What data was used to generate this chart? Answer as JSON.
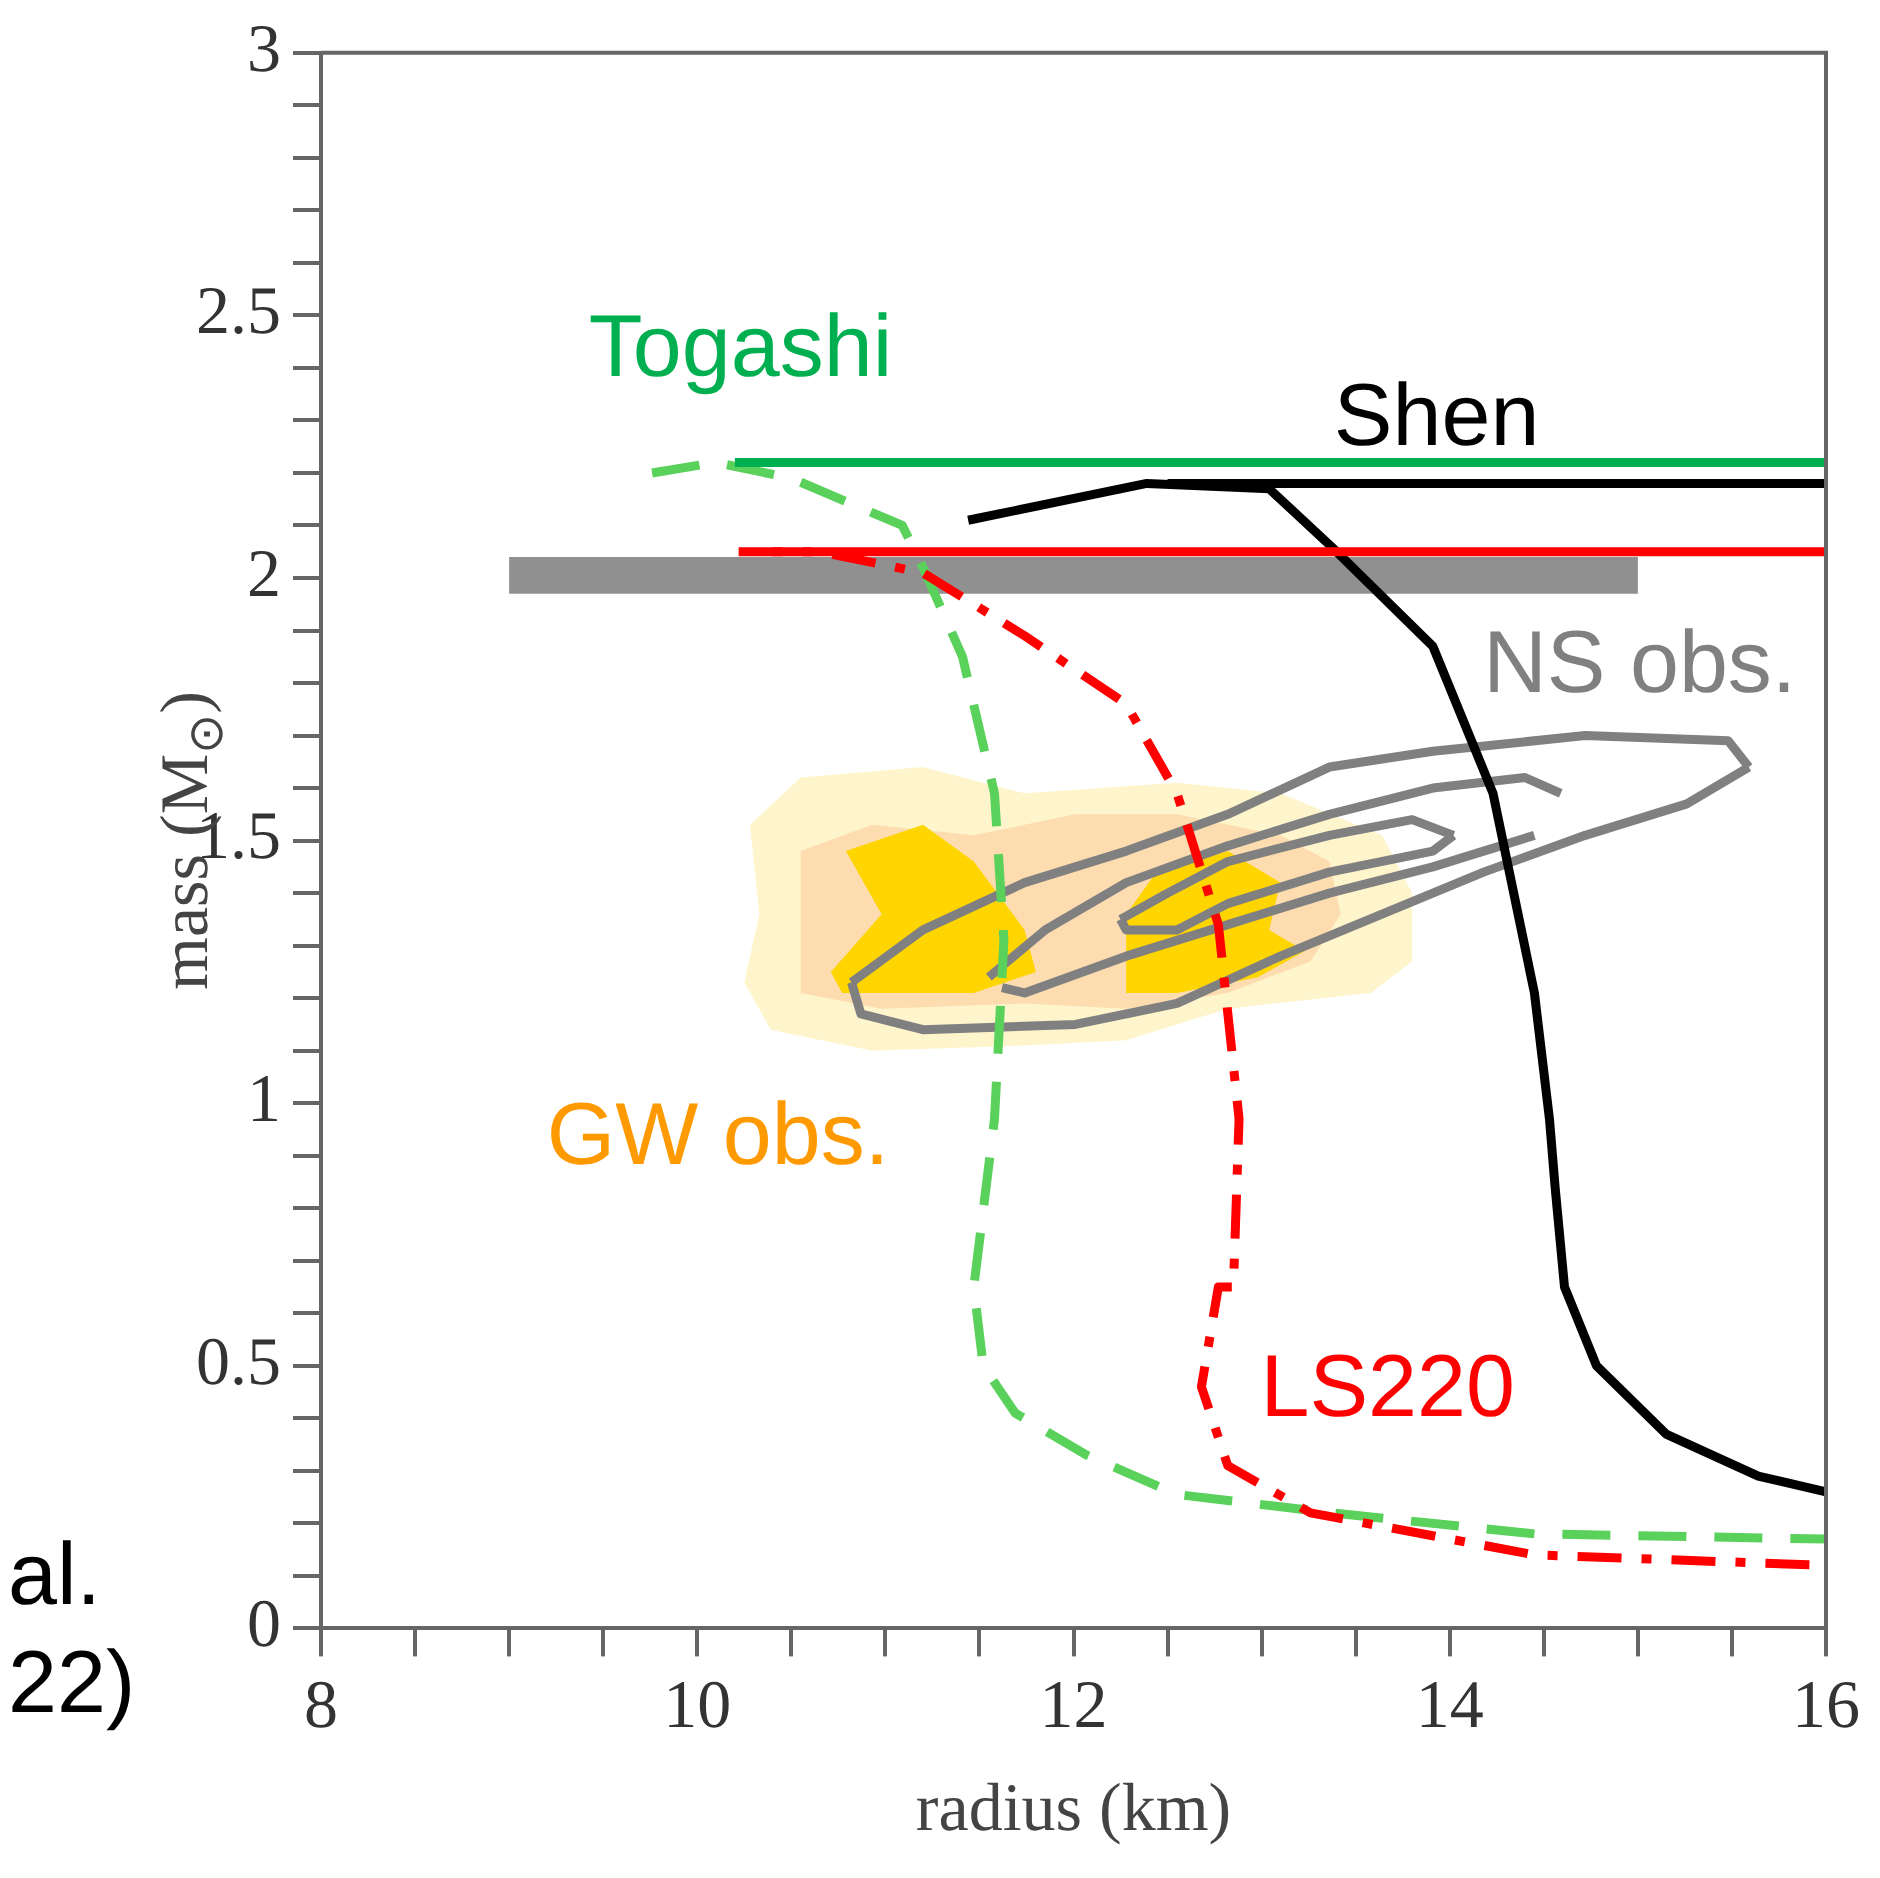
{
  "chart_data": {
    "type": "line",
    "xlabel": "radius (km)",
    "ylabel": "mass (M$_{⊙}$)",
    "xlim": [
      8,
      16
    ],
    "ylim": [
      0,
      3
    ],
    "xticks": [
      8,
      {
        "value": 8.5,
        "label": null
      },
      {
        "value": 9,
        "label": null
      },
      {
        "value": 9.5,
        "label": null
      },
      10,
      {
        "value": 10.5,
        "label": null
      },
      {
        "value": 11,
        "label": null
      },
      {
        "value": 11.5,
        "label": null
      },
      12,
      {
        "value": 12.5,
        "label": null
      },
      {
        "value": 13,
        "label": null
      },
      {
        "value": 13.5,
        "label": null
      },
      14,
      {
        "value": 14.5,
        "label": null
      },
      {
        "value": 15,
        "label": null
      },
      {
        "value": 15.5,
        "label": null
      },
      16
    ],
    "yticks": [
      0,
      {
        "value": 0.1,
        "label": null
      },
      {
        "value": 0.2,
        "label": null
      },
      {
        "value": 0.3,
        "label": null
      },
      {
        "value": 0.4,
        "label": null
      },
      0.5,
      {
        "value": 0.6,
        "label": null
      },
      {
        "value": 0.7,
        "label": null
      },
      {
        "value": 0.8,
        "label": null
      },
      {
        "value": 0.9,
        "label": null
      },
      1,
      {
        "value": 1.1,
        "label": null
      },
      {
        "value": 1.2,
        "label": null
      },
      {
        "value": 1.3,
        "label": null
      },
      {
        "value": 1.4,
        "label": null
      },
      1.5,
      {
        "value": 1.6,
        "label": null
      },
      {
        "value": 1.7,
        "label": null
      },
      {
        "value": 1.8,
        "label": null
      },
      {
        "value": 1.9,
        "label": null
      },
      2,
      {
        "value": 2.1,
        "label": null
      },
      {
        "value": 2.2,
        "label": null
      },
      {
        "value": 2.3,
        "label": null
      },
      {
        "value": 2.4,
        "label": null
      },
      2.5,
      {
        "value": 2.6,
        "label": null
      },
      {
        "value": 2.7,
        "label": null
      },
      {
        "value": 2.8,
        "label": null
      },
      {
        "value": 2.9,
        "label": null
      },
      3
    ],
    "grid": false,
    "marker": "none",
    "series": [
      {
        "type": "area",
        "color": "#fff5cc",
        "x": [
          10.28,
          10.55,
          11.2,
          11.74,
          12.55,
          13.1,
          13.64,
          13.8,
          13.8,
          13.58,
          12.82,
          12.28,
          11.74,
          10.93,
          10.39,
          10.25,
          10.33,
          10.28
        ],
        "values": [
          1.53,
          1.62,
          1.64,
          1.59,
          1.61,
          1.59,
          1.51,
          1.4,
          1.27,
          1.21,
          1.18,
          1.12,
          1.11,
          1.1,
          1.14,
          1.23,
          1.36,
          1.53
        ]
      },
      {
        "type": "area",
        "color": "#fddcb0",
        "x": [
          10.55,
          10.93,
          11.47,
          12.01,
          12.55,
          13.1,
          13.36,
          13.42,
          13.26,
          12.82,
          12.28,
          11.74,
          10.98,
          10.55,
          10.55
        ],
        "values": [
          1.48,
          1.53,
          1.51,
          1.55,
          1.55,
          1.51,
          1.46,
          1.36,
          1.27,
          1.21,
          1.18,
          1.19,
          1.18,
          1.21,
          1.48
        ]
      },
      {
        "type": "area",
        "color": "#ffd500",
        "x": [
          10.79,
          11.2,
          11.47,
          11.74,
          11.8,
          11.47,
          10.77,
          10.71,
          10.98,
          10.79
        ],
        "values": [
          1.48,
          1.53,
          1.46,
          1.33,
          1.25,
          1.21,
          1.21,
          1.25,
          1.36,
          1.48
        ]
      },
      {
        "type": "area",
        "color": "#ffd500",
        "x": [
          12.44,
          12.82,
          13.1,
          13.04,
          13.23,
          12.98,
          12.55,
          12.28,
          12.28,
          12.44
        ],
        "values": [
          1.44,
          1.48,
          1.42,
          1.33,
          1.29,
          1.24,
          1.21,
          1.21,
          1.36,
          1.44
        ]
      },
      {
        "type": "line",
        "color": "#808080",
        "line_style": "solid",
        "x": [
          10.82,
          11.2,
          11.74,
          12.28,
          12.82,
          13.36,
          13.91,
          14.72,
          15.48,
          15.59
        ],
        "values": [
          1.23,
          1.33,
          1.42,
          1.48,
          1.55,
          1.64,
          1.67,
          1.7,
          1.69,
          1.64
        ]
      },
      {
        "type": "line",
        "color": "#808080",
        "line_style": "solid",
        "x": [
          10.82,
          10.87,
          11.2,
          12.01,
          12.55,
          13.1,
          13.64,
          14.18,
          14.72,
          15.26,
          15.59
        ],
        "values": [
          1.23,
          1.17,
          1.14,
          1.15,
          1.19,
          1.28,
          1.36,
          1.44,
          1.51,
          1.57,
          1.64
        ]
      },
      {
        "type": "line",
        "color": "#808080",
        "line_style": "solid",
        "x": [
          11.55,
          11.85,
          12.28,
          12.82,
          13.36,
          13.91,
          14.4,
          14.59
        ],
        "values": [
          1.24,
          1.33,
          1.42,
          1.49,
          1.55,
          1.6,
          1.62,
          1.59
        ]
      },
      {
        "type": "line",
        "color": "#808080",
        "line_style": "solid",
        "x": [
          11.62,
          11.74,
          12.28,
          12.82,
          13.36,
          13.91,
          14.45
        ],
        "values": [
          1.22,
          1.21,
          1.28,
          1.34,
          1.4,
          1.45,
          1.51
        ]
      },
      {
        "type": "line",
        "color": "#808080",
        "line_style": "solid",
        "x": [
          12.25,
          12.5,
          12.82,
          13.36,
          13.8,
          14.02
        ],
        "values": [
          1.35,
          1.4,
          1.46,
          1.51,
          1.54,
          1.51
        ]
      },
      {
        "type": "line",
        "color": "#808080",
        "line_style": "solid",
        "x": [
          12.25,
          12.28,
          12.55,
          12.82,
          13.36,
          13.91,
          14.02
        ],
        "values": [
          1.35,
          1.33,
          1.33,
          1.38,
          1.44,
          1.48,
          1.51
        ]
      },
      {
        "type": "area",
        "color": "#909090",
        "x": [
          9,
          15,
          15,
          9,
          9
        ],
        "values": [
          1.97,
          1.97,
          2.04,
          2.04,
          1.97
        ]
      },
      {
        "type": "line",
        "color": "#5ad15a",
        "line_style": "dashed",
        "x": [
          9.76,
          10.1,
          10.5,
          11.09,
          11.2,
          11.41,
          11.58,
          11.63,
          11.58,
          11.47,
          11.52,
          11.69,
          12.07,
          12.55,
          13.37,
          14.45,
          16
        ],
        "values": [
          2.2,
          2.22,
          2.19,
          2.1,
          2.02,
          1.85,
          1.59,
          1.31,
          0.97,
          0.65,
          0.5,
          0.41,
          0.33,
          0.255,
          0.22,
          0.18,
          0.17
        ]
      },
      {
        "type": "line",
        "color": "#ff0000",
        "line_style": "dashdot",
        "x": [
          10.22,
          10.65,
          11.2,
          11.74,
          12.28,
          12.55,
          12.77,
          12.88,
          12.85,
          12.77,
          12.68,
          12.82,
          13.26,
          14.45,
          16
        ],
        "values": [
          2.05,
          2.05,
          2.01,
          1.89,
          1.76,
          1.59,
          1.34,
          0.97,
          0.65,
          0.65,
          0.46,
          0.31,
          0.22,
          0.14,
          0.12
        ]
      },
      {
        "type": "line",
        "color": "#000000",
        "line_style": "solid",
        "x": [
          11.44,
          12.39,
          13.04,
          13.37,
          13.91,
          14.23,
          14.45,
          14.53,
          14.56,
          14.61,
          14.78,
          15.15,
          15.64,
          16
        ],
        "values": [
          2.11,
          2.18,
          2.17,
          2.06,
          1.87,
          1.59,
          1.21,
          0.97,
          0.84,
          0.65,
          0.5,
          0.37,
          0.29,
          0.26
        ]
      },
      {
        "type": "line",
        "color": "#00b050",
        "line_style": "solid",
        "x": [
          10.2,
          16
        ],
        "values": [
          2.22,
          2.22
        ]
      },
      {
        "type": "line",
        "color": "#000000",
        "line_style": "solid",
        "x": [
          12.5,
          16
        ],
        "values": [
          2.18,
          2.18
        ]
      },
      {
        "type": "line",
        "color": "#ff0000",
        "line_style": "solid",
        "x": [
          10.4,
          16
        ],
        "values": [
          2.05,
          2.05
        ]
      }
    ],
    "annotations": [
      "Togashi",
      "Shen",
      "NS obs.",
      "GW obs.",
      "LS220",
      "al.",
      "22)"
    ]
  }
}
